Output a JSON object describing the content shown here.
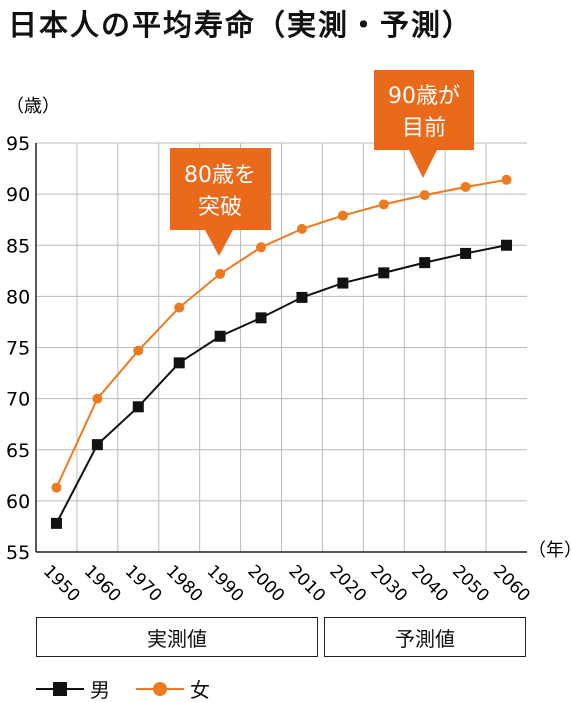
{
  "title": "日本人の平均寿命（実測・予測）",
  "sections": [
    "実測値",
    "予測値"
  ],
  "callouts": [
    {
      "line1": "80歳を",
      "line2": "突破"
    },
    {
      "line1": "90歳が",
      "line2": "目前"
    }
  ],
  "colors": {
    "male": "#111111",
    "female": "#ee7a1f",
    "callout": "#ea6a1c",
    "grid": "#bbbbbb"
  },
  "chart_data": {
    "type": "line",
    "title": "日本人の平均寿命（実測・予測）",
    "ylabel": "（歳）",
    "xlabel": "（年）",
    "ylim": [
      55,
      95
    ],
    "yticks": [
      55,
      60,
      65,
      70,
      75,
      80,
      85,
      90,
      95
    ],
    "categories": [
      "1950",
      "1960",
      "1970",
      "1980",
      "1990",
      "2000",
      "2010",
      "2020",
      "2030",
      "2040",
      "2050",
      "2060"
    ],
    "series": [
      {
        "name": "男",
        "marker": "square",
        "values": [
          57.8,
          65.5,
          69.2,
          73.5,
          76.1,
          77.9,
          79.9,
          81.3,
          82.3,
          83.3,
          84.2,
          85.0
        ]
      },
      {
        "name": "女",
        "marker": "circle",
        "values": [
          61.3,
          70.0,
          74.7,
          78.9,
          82.2,
          84.8,
          86.6,
          87.9,
          89.0,
          89.9,
          90.7,
          91.4
        ]
      }
    ],
    "legend": "bottom-left",
    "grid": true
  }
}
